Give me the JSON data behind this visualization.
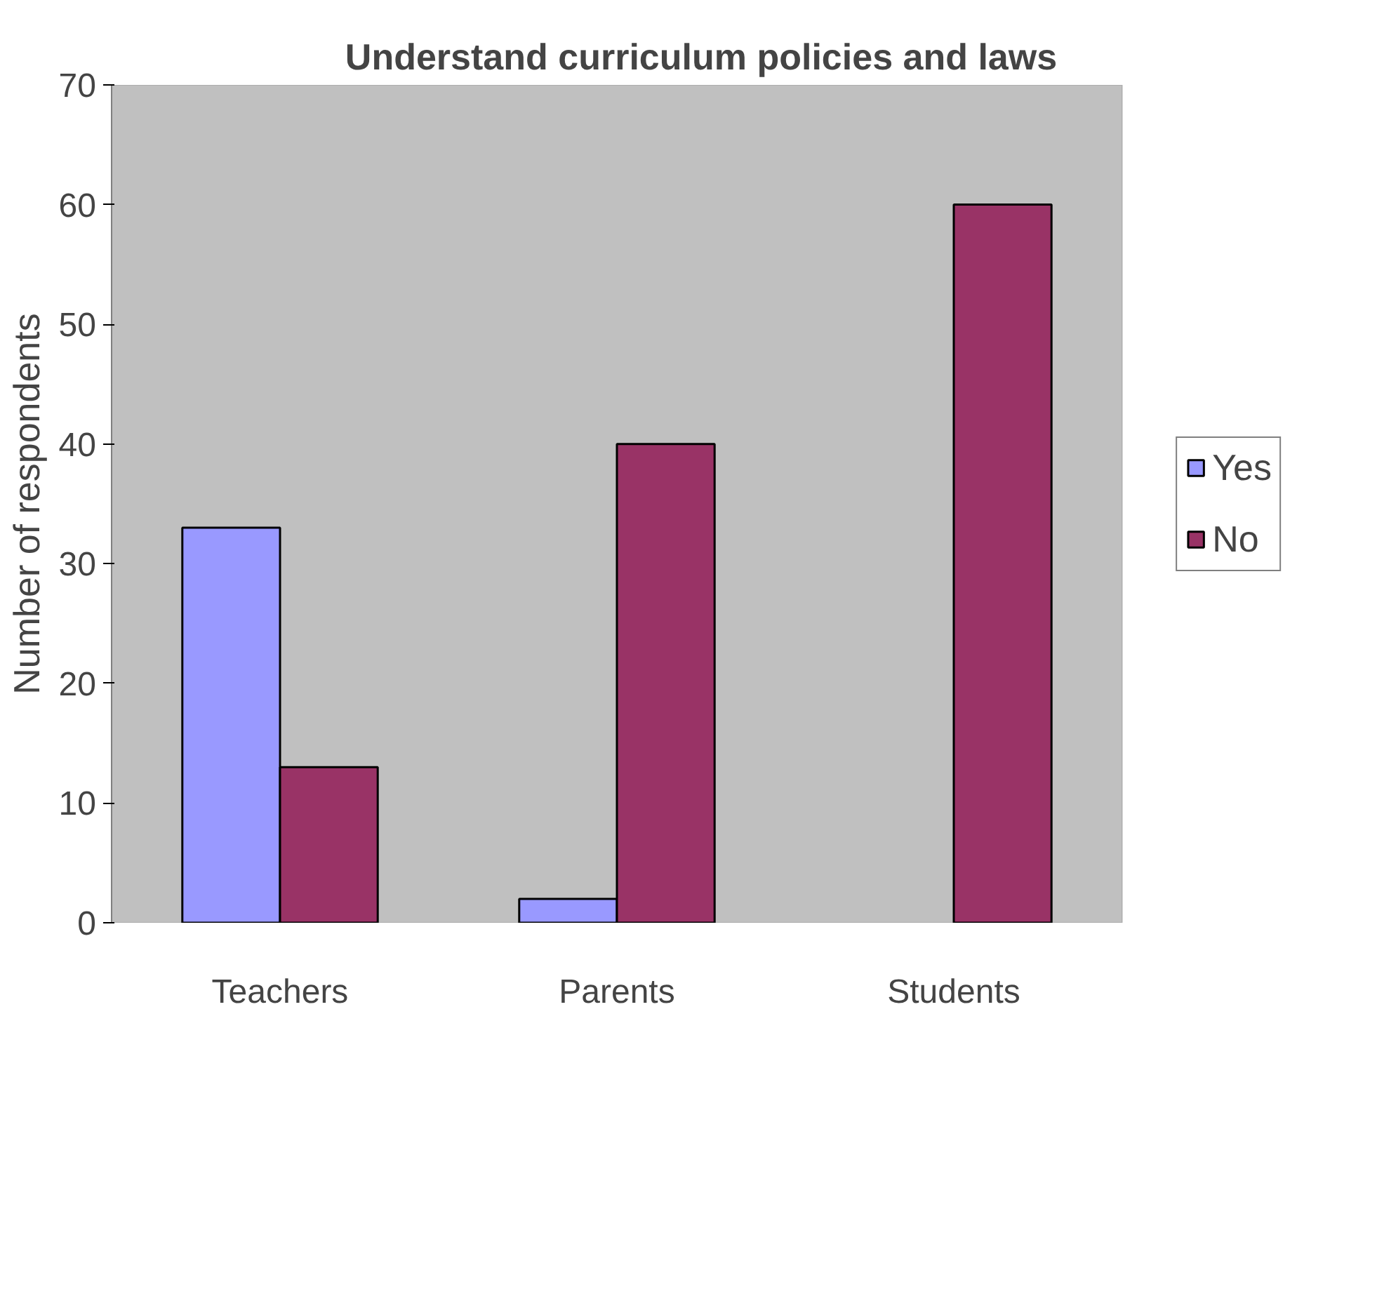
{
  "chart_data": {
    "type": "bar",
    "title": "Understand curriculum policies and laws",
    "categories": [
      "Teachers",
      "Parents",
      "Students"
    ],
    "series": [
      {
        "name": "Yes",
        "color": "#9999ff",
        "values": [
          33,
          2,
          null
        ]
      },
      {
        "name": "No",
        "color": "#993366",
        "values": [
          13,
          40,
          60
        ]
      }
    ],
    "ylabel": "Number of respondents",
    "ylim": [
      0,
      70
    ],
    "yticks": [
      0,
      10,
      20,
      30,
      40,
      50,
      60,
      70
    ],
    "grid": false,
    "legend": "right"
  }
}
